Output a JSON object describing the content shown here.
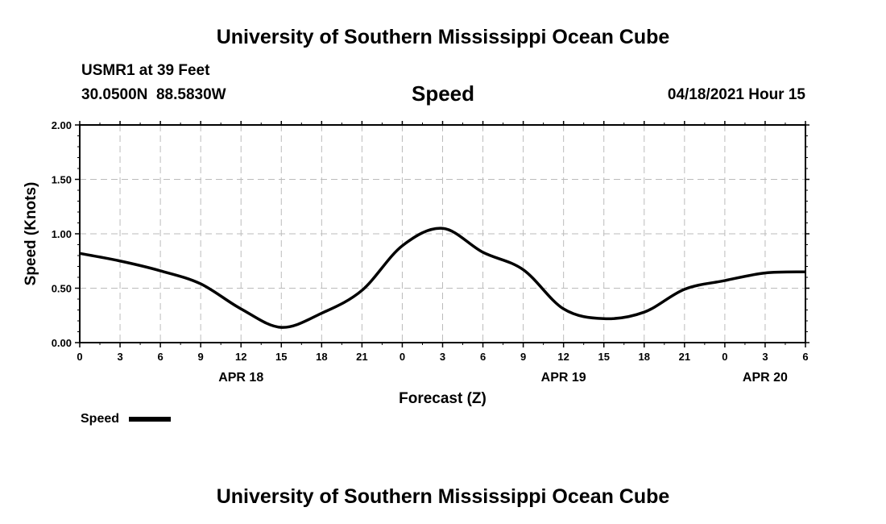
{
  "header": {
    "title": "University of Southern Mississippi Ocean Cube",
    "station": "USMR1 at 39 Feet",
    "coords": "30.0500N  88.5830W",
    "time": "04/18/2021 Hour 15"
  },
  "footer": {
    "title": "University of Southern Mississippi Ocean Cube"
  },
  "chart_data": {
    "type": "line",
    "title": "Speed",
    "xlabel": "Forecast (Z)",
    "ylabel": "Speed (Knots)",
    "ylim": [
      0,
      2
    ],
    "yticks": [
      "0.00",
      "0.50",
      "1.00",
      "1.50",
      "2.00"
    ],
    "xlim": [
      0,
      54
    ],
    "xtick_labels": [
      "0",
      "3",
      "6",
      "9",
      "12",
      "15",
      "18",
      "21",
      "0",
      "3",
      "6",
      "9",
      "12",
      "15",
      "18",
      "21",
      "0",
      "3",
      "6"
    ],
    "date_labels": [
      {
        "hour": 12,
        "label": "APR 18"
      },
      {
        "hour": 36,
        "label": "APR 19"
      },
      {
        "hour": 51,
        "label": "APR 20"
      }
    ],
    "grid": true,
    "legend": {
      "label": "Speed",
      "placement": "bottom-left"
    },
    "series": [
      {
        "name": "Speed",
        "color": "#000000",
        "x": [
          0,
          3,
          6,
          9,
          12,
          15,
          18,
          21,
          24,
          27,
          30,
          33,
          36,
          39,
          42,
          45,
          48,
          51,
          54
        ],
        "y": [
          0.82,
          0.75,
          0.66,
          0.54,
          0.31,
          0.14,
          0.27,
          0.48,
          0.89,
          1.05,
          0.83,
          0.67,
          0.31,
          0.22,
          0.28,
          0.49,
          0.57,
          0.64,
          0.65
        ]
      }
    ]
  }
}
